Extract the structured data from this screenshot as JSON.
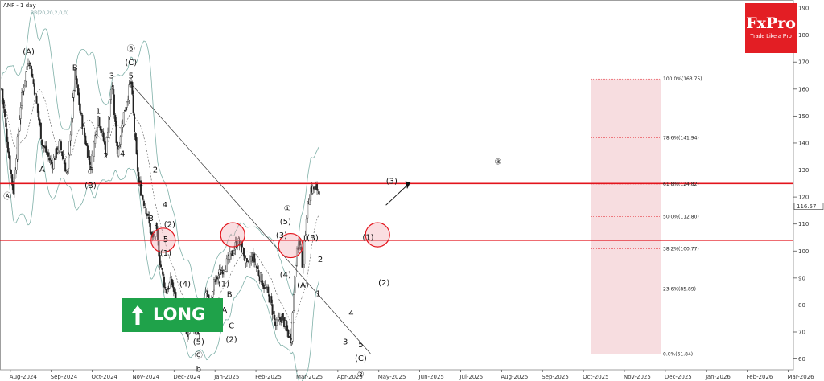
{
  "header": {
    "title": "ANF - 1 day",
    "indicator": "BB(20,20,2,0,0)"
  },
  "logo": {
    "name": "FxPro",
    "tagline": "Trade Like a Pro"
  },
  "signal": {
    "label": "LONG",
    "color": "#1fa24a"
  },
  "colors": {
    "up": "#222222",
    "down": "#222222",
    "band": "#7fb0a8",
    "sr_line": "#e3141c",
    "fib_zone": "#f6d9dd",
    "circle": "#e3141c"
  },
  "chart_data": {
    "type": "candlestick",
    "symbol": "ANF",
    "timeframe": "1 day",
    "ylim": [
      56,
      193
    ],
    "y_ticks": [
      60,
      70,
      80,
      90,
      100,
      110,
      120,
      130,
      140,
      150,
      160,
      170,
      180,
      190
    ],
    "x_ticks": [
      "Aug-2024",
      "Sep-2024",
      "Oct-2024",
      "Nov-2024",
      "Dec-2024",
      "Jan-2025",
      "Feb-2025",
      "Mar-2025",
      "Apr-2025",
      "May-2025",
      "Jun-2025",
      "Jul-2025",
      "Aug-2025",
      "Sep-2025",
      "Oct-2025",
      "Nov-2025",
      "Dec-2025",
      "Jan-2026",
      "Feb-2026",
      "Mar-2026"
    ],
    "last_price": "116.57",
    "price_path": [
      [
        0,
        160
      ],
      [
        3,
        140
      ],
      [
        6,
        122
      ],
      [
        10,
        155
      ],
      [
        14,
        172
      ],
      [
        17,
        160
      ],
      [
        21,
        140
      ],
      [
        26,
        132
      ],
      [
        30,
        140
      ],
      [
        34,
        128
      ],
      [
        38,
        166
      ],
      [
        41,
        150
      ],
      [
        46,
        131
      ],
      [
        50,
        150
      ],
      [
        54,
        137
      ],
      [
        57,
        163
      ],
      [
        60,
        136
      ],
      [
        63,
        150
      ],
      [
        67,
        163
      ],
      [
        69,
        142
      ],
      [
        71,
        125
      ],
      [
        73,
        120
      ],
      [
        75,
        115
      ],
      [
        78,
        104
      ],
      [
        80,
        108
      ],
      [
        82,
        96
      ],
      [
        85,
        85
      ],
      [
        88,
        89
      ],
      [
        91,
        78
      ],
      [
        94,
        74
      ],
      [
        96,
        68
      ],
      [
        99,
        72
      ],
      [
        102,
        70
      ],
      [
        104,
        78
      ],
      [
        106,
        86
      ],
      [
        108,
        78
      ],
      [
        110,
        88
      ],
      [
        113,
        92
      ],
      [
        117,
        96
      ],
      [
        120,
        100
      ],
      [
        122,
        104
      ],
      [
        125,
        100
      ],
      [
        127,
        94
      ],
      [
        130,
        98
      ],
      [
        133,
        92
      ],
      [
        136,
        87
      ],
      [
        139,
        82
      ],
      [
        142,
        72
      ],
      [
        145,
        76
      ],
      [
        148,
        70
      ],
      [
        150,
        67
      ],
      [
        152,
        95
      ],
      [
        154,
        104
      ],
      [
        156,
        94
      ],
      [
        158,
        115
      ],
      [
        160,
        123
      ]
    ],
    "wave_labels": [
      {
        "t": 3,
        "v": 122,
        "text": "Ⓐ",
        "pos": "below"
      },
      {
        "t": 14,
        "v": 172,
        "text": "(A)",
        "pos": "above"
      },
      {
        "t": 21,
        "v": 132,
        "text": "A",
        "pos": "below"
      },
      {
        "t": 38,
        "v": 166,
        "text": "B",
        "pos": "above"
      },
      {
        "t": 46,
        "v": 131,
        "text": "C",
        "pos": "below"
      },
      {
        "t": 46,
        "v": 126,
        "text": "(B)",
        "pos": "below"
      },
      {
        "t": 50,
        "v": 150,
        "text": "1",
        "pos": "above"
      },
      {
        "t": 54,
        "v": 137,
        "text": "2",
        "pos": "below"
      },
      {
        "t": 57,
        "v": 163,
        "text": "3",
        "pos": "above"
      },
      {
        "t": 60,
        "v": 136,
        "text": "4",
        "pos": "right"
      },
      {
        "t": 67,
        "v": 163,
        "text": "5",
        "pos": "above"
      },
      {
        "t": 67,
        "v": 168,
        "text": "(C)",
        "pos": "above"
      },
      {
        "t": 67,
        "v": 173,
        "text": "Ⓑ",
        "pos": "above"
      },
      {
        "t": 75,
        "v": 125,
        "text": "1",
        "pos": "left"
      },
      {
        "t": 77,
        "v": 130,
        "text": "2",
        "pos": "right"
      },
      {
        "t": 80,
        "v": 112,
        "text": "3",
        "pos": "left"
      },
      {
        "t": 82,
        "v": 117,
        "text": "4",
        "pos": "right"
      },
      {
        "t": 85,
        "v": 106,
        "text": "5",
        "pos": "below"
      },
      {
        "t": 85,
        "v": 101,
        "text": "(1)",
        "pos": "below"
      },
      {
        "t": 87,
        "v": 108,
        "text": "(2)",
        "pos": "above"
      },
      {
        "t": 91,
        "v": 78,
        "text": "(3)",
        "pos": "below"
      },
      {
        "t": 95,
        "v": 86,
        "text": "(4)",
        "pos": "above"
      },
      {
        "t": 102,
        "v": 68,
        "text": "(5)",
        "pos": "below"
      },
      {
        "t": 102,
        "v": 63,
        "text": "Ⓒ",
        "pos": "below"
      },
      {
        "t": 102,
        "v": 58,
        "text": "b",
        "pos": "below"
      },
      {
        "t": 115,
        "v": 86,
        "text": "(1)",
        "pos": "above"
      },
      {
        "t": 118,
        "v": 82,
        "text": "B",
        "pos": "above"
      },
      {
        "t": 118,
        "v": 78,
        "text": "A",
        "pos": "left"
      },
      {
        "t": 119,
        "v": 74,
        "text": "C",
        "pos": "below"
      },
      {
        "t": 119,
        "v": 69,
        "text": "(2)",
        "pos": "below"
      },
      {
        "t": 145,
        "v": 104,
        "text": "(3)",
        "pos": "above"
      },
      {
        "t": 147,
        "v": 109,
        "text": "(5)",
        "pos": "above"
      },
      {
        "t": 148,
        "v": 114,
        "text": "①",
        "pos": "above"
      },
      {
        "t": 147,
        "v": 93,
        "text": "(4)",
        "pos": "below"
      },
      {
        "t": 161,
        "v": 103,
        "text": "(B)",
        "pos": "above"
      },
      {
        "t": 156,
        "v": 89,
        "text": "(A)",
        "pos": "below"
      },
      {
        "t": 165,
        "v": 95,
        "text": "2",
        "pos": "above"
      },
      {
        "t": 164,
        "v": 86,
        "text": "1",
        "pos": "below"
      },
      {
        "t": 178,
        "v": 68,
        "text": "3",
        "pos": "below"
      },
      {
        "t": 181,
        "v": 75,
        "text": "4",
        "pos": "above"
      },
      {
        "t": 186,
        "v": 67,
        "text": "5",
        "pos": "below"
      },
      {
        "t": 186,
        "v": 62,
        "text": "(C)",
        "pos": "below"
      },
      {
        "t": 186,
        "v": 56,
        "text": "②",
        "pos": "below"
      },
      {
        "t": 194,
        "v": 105,
        "text": "(1)",
        "pos": "left"
      },
      {
        "t": 198,
        "v": 90,
        "text": "(2)",
        "pos": "below"
      },
      {
        "t": 202,
        "v": 124,
        "text": "(3)",
        "pos": "above"
      },
      {
        "t": 257,
        "v": 133,
        "text": "③",
        "pos": "center"
      }
    ],
    "support_resistance": [
      125.0,
      104.0
    ],
    "fibonacci": {
      "levels": [
        {
          "label": "100.0%(163.75)",
          "value": 163.75
        },
        {
          "label": "78.6%(141.94)",
          "value": 141.94
        },
        {
          "label": "61.8%(124.82)",
          "value": 124.82
        },
        {
          "label": "50.0%(112.80)",
          "value": 112.8
        },
        {
          "label": "38.2%(100.77)",
          "value": 100.77
        },
        {
          "label": "23.6%(85.89)",
          "value": 85.89
        },
        {
          "label": "0.0%(61.84)",
          "value": 61.84
        }
      ]
    },
    "circles": [
      {
        "t": 87,
        "v": 104
      },
      {
        "t": 123,
        "v": 106
      },
      {
        "t": 153,
        "v": 102
      },
      {
        "t": 198,
        "v": 106
      }
    ],
    "trendline": [
      [
        67,
        162
      ],
      [
        191,
        62
      ]
    ]
  }
}
